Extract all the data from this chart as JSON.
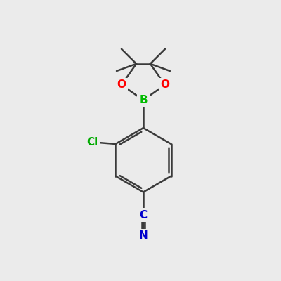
{
  "background_color": "#ebebeb",
  "bond_color": "#3a3a3a",
  "bond_width": 1.8,
  "atom_colors": {
    "B": "#00bb00",
    "O": "#ff0000",
    "Cl": "#00aa00",
    "C_nitrile": "#0000cc",
    "N": "#0000cc"
  },
  "figsize": [
    4.0,
    4.0
  ],
  "dpi": 100
}
